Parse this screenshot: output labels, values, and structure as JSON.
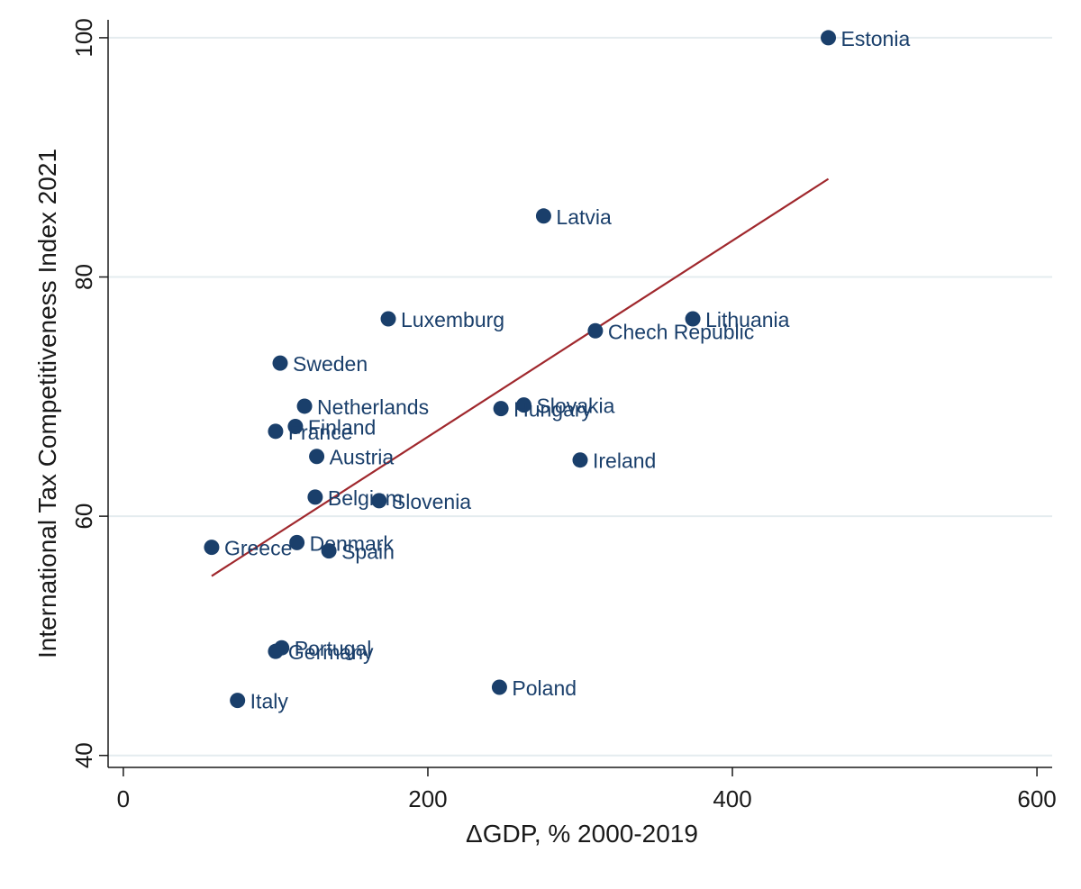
{
  "chart_data": {
    "type": "scatter",
    "title": "",
    "xlabel": "ΔGDP, % 2000-2019",
    "ylabel": "International Tax Competitiveness Index 2021",
    "xlim": [
      -10,
      610
    ],
    "ylim": [
      39,
      101.5
    ],
    "x_ticks": [
      0,
      200,
      400,
      600
    ],
    "x_tick_labels": [
      "0",
      "200",
      "400",
      "600"
    ],
    "y_ticks": [
      40,
      60,
      80,
      100
    ],
    "y_tick_labels": [
      "40",
      "60",
      "80",
      "100"
    ],
    "grid": "horizontal",
    "marker_color": "#1a3f6b",
    "fit_line_color": "#a0282d",
    "points": [
      {
        "label": "Estonia",
        "x": 463,
        "y": 100
      },
      {
        "label": "Latvia",
        "x": 276,
        "y": 85.1
      },
      {
        "label": "Lithuania",
        "x": 374,
        "y": 76.5
      },
      {
        "label": "Chech Republic",
        "x": 310,
        "y": 75.5
      },
      {
        "label": "Luxemburg",
        "x": 174,
        "y": 76.5
      },
      {
        "label": "Sweden",
        "x": 103,
        "y": 72.8
      },
      {
        "label": "Netherlands",
        "x": 119,
        "y": 69.2
      },
      {
        "label": "Slovakia",
        "x": 263,
        "y": 69.3
      },
      {
        "label": "Hungary",
        "x": 248,
        "y": 69.0
      },
      {
        "label": "Finland",
        "x": 113,
        "y": 67.5
      },
      {
        "label": "France",
        "x": 100,
        "y": 67.1
      },
      {
        "label": "Ireland",
        "x": 300,
        "y": 64.7
      },
      {
        "label": "Austria",
        "x": 127,
        "y": 65.0
      },
      {
        "label": "Belgium",
        "x": 126,
        "y": 61.6
      },
      {
        "label": "Slovenia",
        "x": 168,
        "y": 61.3
      },
      {
        "label": "Greece",
        "x": 58,
        "y": 57.4
      },
      {
        "label": "Denmark",
        "x": 114,
        "y": 57.8
      },
      {
        "label": "Spain",
        "x": 135,
        "y": 57.1
      },
      {
        "label": "Portugal",
        "x": 104,
        "y": 49.0
      },
      {
        "label": "Germany",
        "x": 100,
        "y": 48.7
      },
      {
        "label": "Poland",
        "x": 247,
        "y": 45.7
      },
      {
        "label": "Italy",
        "x": 75,
        "y": 44.6
      }
    ],
    "fit_line": {
      "x": [
        58,
        463
      ],
      "y": [
        55.0,
        88.2
      ]
    }
  }
}
